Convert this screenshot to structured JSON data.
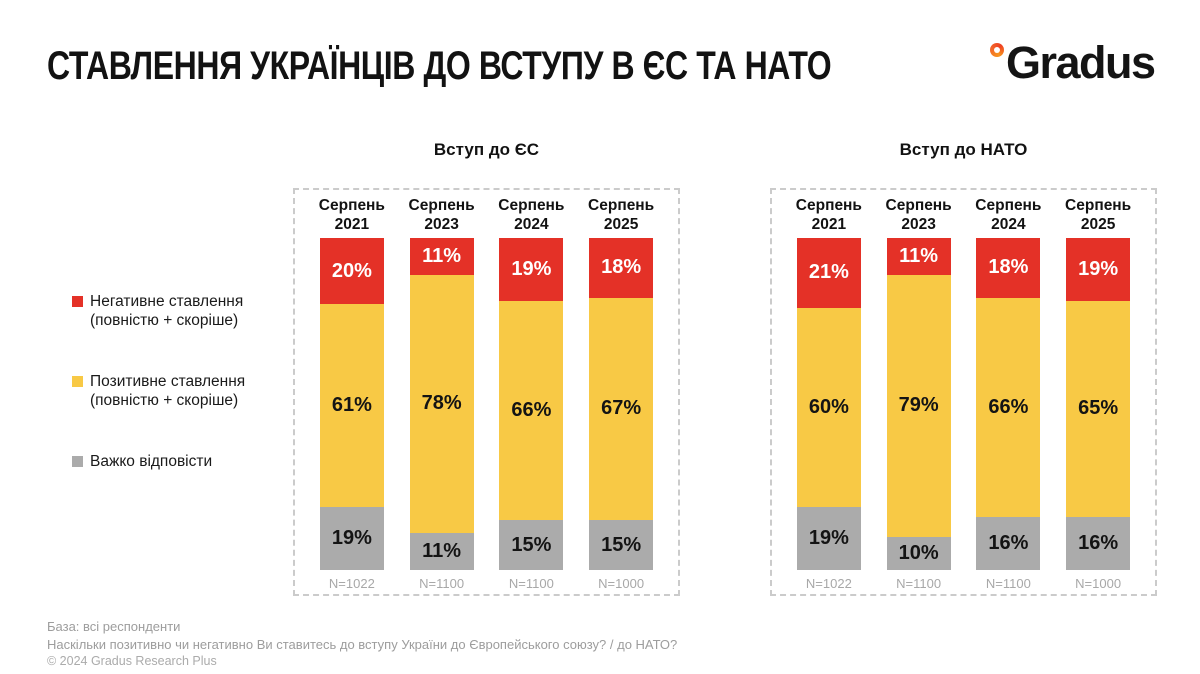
{
  "page": {
    "title": "СТАВЛЕННЯ УКРАЇНЦІВ ДО ВСТУПУ В ЄС ТА НАТО",
    "logo_text": "Gradus",
    "logo_ring_color": "#f2682a"
  },
  "legend": {
    "items": [
      {
        "line1": "Негативне ставлення",
        "line2": "(повністю + скоріше)",
        "color": "#e43127"
      },
      {
        "line1": "Позитивне ставлення",
        "line2": "(повністю + скоріше)",
        "color": "#f8c945"
      },
      {
        "line1": "Важко відповісти",
        "line2": "",
        "color": "#ababab"
      }
    ]
  },
  "chart_data": [
    {
      "type": "bar",
      "stacked": true,
      "title": "Вступ до ЄС",
      "categories": [
        "Серпень 2021",
        "Серпень 2023",
        "Серпень 2024",
        "Серпень 2025"
      ],
      "n_labels": [
        "N=1022",
        "N=1100",
        "N=1100",
        "N=1000"
      ],
      "ylim": [
        0,
        100
      ],
      "legend_position": "left",
      "grid": false,
      "series": [
        {
          "name": "Негативне ставлення (повністю + скоріше)",
          "color": "#e43127",
          "label_color": "#ffffff",
          "values": [
            20,
            11,
            19,
            18
          ]
        },
        {
          "name": "Позитивне ставлення (повністю + скоріше)",
          "color": "#f8c945",
          "label_color": "#141414",
          "values": [
            61,
            78,
            66,
            67
          ]
        },
        {
          "name": "Важко відповісти",
          "color": "#ababab",
          "label_color": "#141414",
          "values": [
            19,
            11,
            15,
            15
          ]
        }
      ]
    },
    {
      "type": "bar",
      "stacked": true,
      "title": "Вступ до НАТО",
      "categories": [
        "Серпень 2021",
        "Серпень 2023",
        "Серпень 2024",
        "Серпень 2025"
      ],
      "n_labels": [
        "N=1022",
        "N=1100",
        "N=1100",
        "N=1000"
      ],
      "ylim": [
        0,
        100
      ],
      "legend_position": "left",
      "grid": false,
      "series": [
        {
          "name": "Негативне ставлення (повністю + скоріше)",
          "color": "#e43127",
          "label_color": "#ffffff",
          "values": [
            21,
            11,
            18,
            19
          ]
        },
        {
          "name": "Позитивне ставлення (повністю + скоріше)",
          "color": "#f8c945",
          "label_color": "#141414",
          "values": [
            60,
            79,
            66,
            65
          ]
        },
        {
          "name": "Важко відповісти",
          "color": "#ababab",
          "label_color": "#141414",
          "values": [
            19,
            10,
            16,
            16
          ]
        }
      ]
    }
  ],
  "footer": {
    "base_line": "База: всі респонденти",
    "question_line": "Наскільки позитивно чи негативно Ви ставитесь до вступу України до Європейського союзу? / до НАТО?",
    "copyright": "© 2024 Gradus Research Plus"
  }
}
